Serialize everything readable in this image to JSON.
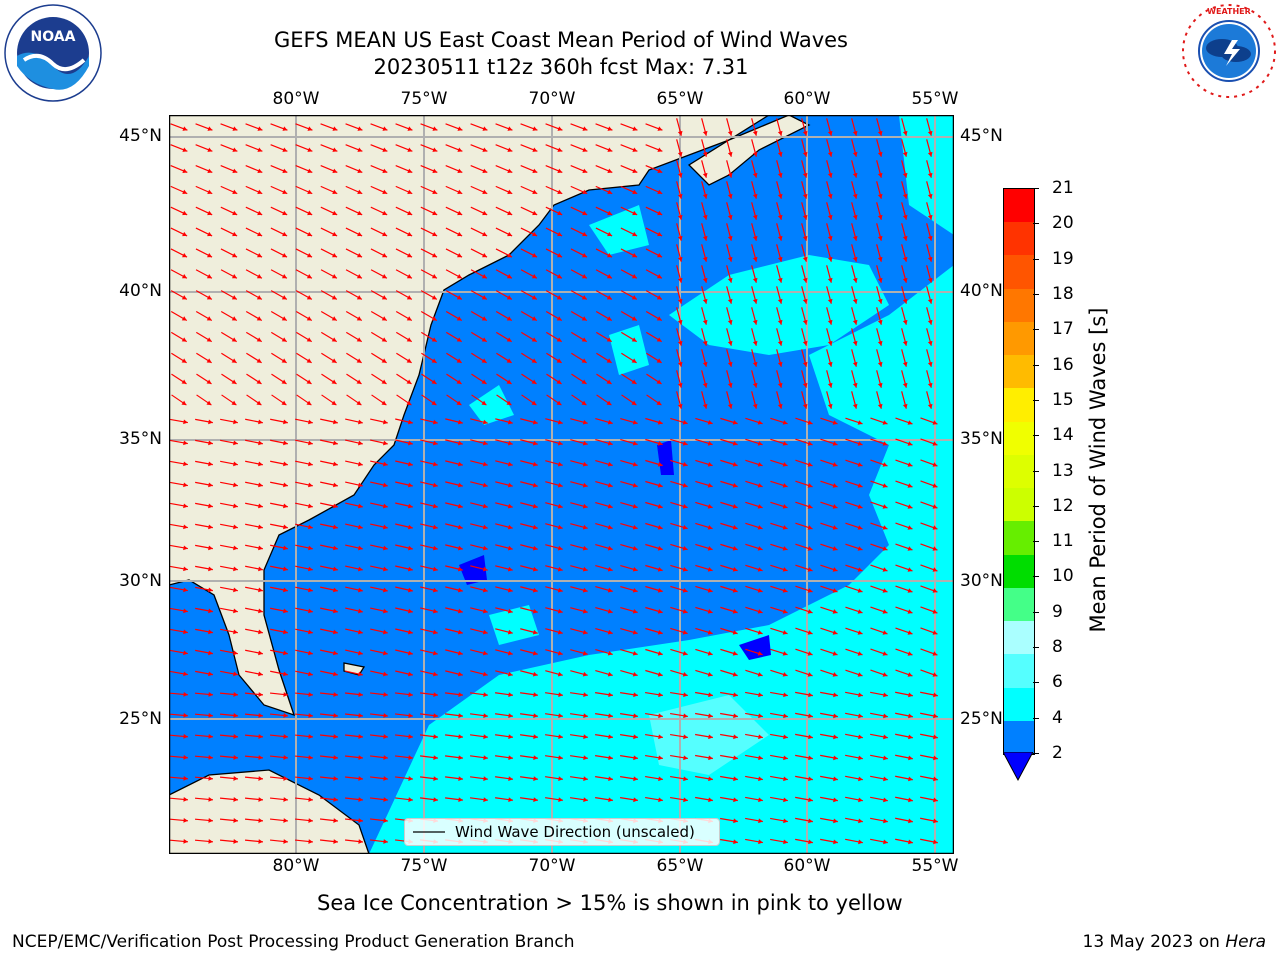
{
  "header": {
    "title_line1": "GEFS MEAN US East Coast Mean Period of Wind Waves",
    "title_line2": "20230511 t12z 360h fcst   Max: 7.31"
  },
  "logos": {
    "noaa_text": "NOAA",
    "noaa_ring": "NATIONAL OCEANIC AND ATMOSPHERIC ADMINISTRATION · U.S. DEPARTMENT OF COMMERCE",
    "nws_ring": "NATIONAL WEATHER SERVICE"
  },
  "axes": {
    "lon_labels": [
      "80°W",
      "75°W",
      "70°W",
      "65°W",
      "60°W",
      "55°W"
    ],
    "lat_labels": [
      "45°N",
      "40°N",
      "35°N",
      "30°N",
      "25°N"
    ]
  },
  "legend": {
    "label": "Wind Wave Direction (unscaled)"
  },
  "colorbar": {
    "label": "Mean Period of Wind Waves [s]",
    "ticks": [
      "21",
      "20",
      "19",
      "18",
      "17",
      "16",
      "15",
      "14",
      "13",
      "12",
      "11",
      "10",
      "9",
      "8",
      "6",
      "4",
      "2"
    ],
    "colors": [
      "#ff0000",
      "#ff3300",
      "#ff5500",
      "#ff7700",
      "#ff9900",
      "#ffbb00",
      "#ffee00",
      "#f0ff00",
      "#ddff00",
      "#ccff00",
      "#66ee00",
      "#00dd00",
      "#44ff88",
      "#aaffff",
      "#55ffff",
      "#00ffff",
      "#0080ff"
    ],
    "extend_color": "#0000ff"
  },
  "map": {
    "land_color": "#efeedc",
    "ocean_colors": {
      "2-4": "#0080ff",
      "4-6": "#00ffff",
      "6-8": "#55ffff",
      "below": "#0000ff"
    },
    "arrow_color": "#ff0000",
    "grid_color": "#b0b0b0"
  },
  "footer": {
    "ice_note": "Sea Ice Concentration > 15% is shown in pink to yellow",
    "credit": "NCEP/EMC/Verification Post Processing Product Generation Branch",
    "date": "13 May 2023 on",
    "machine": "Hera"
  }
}
